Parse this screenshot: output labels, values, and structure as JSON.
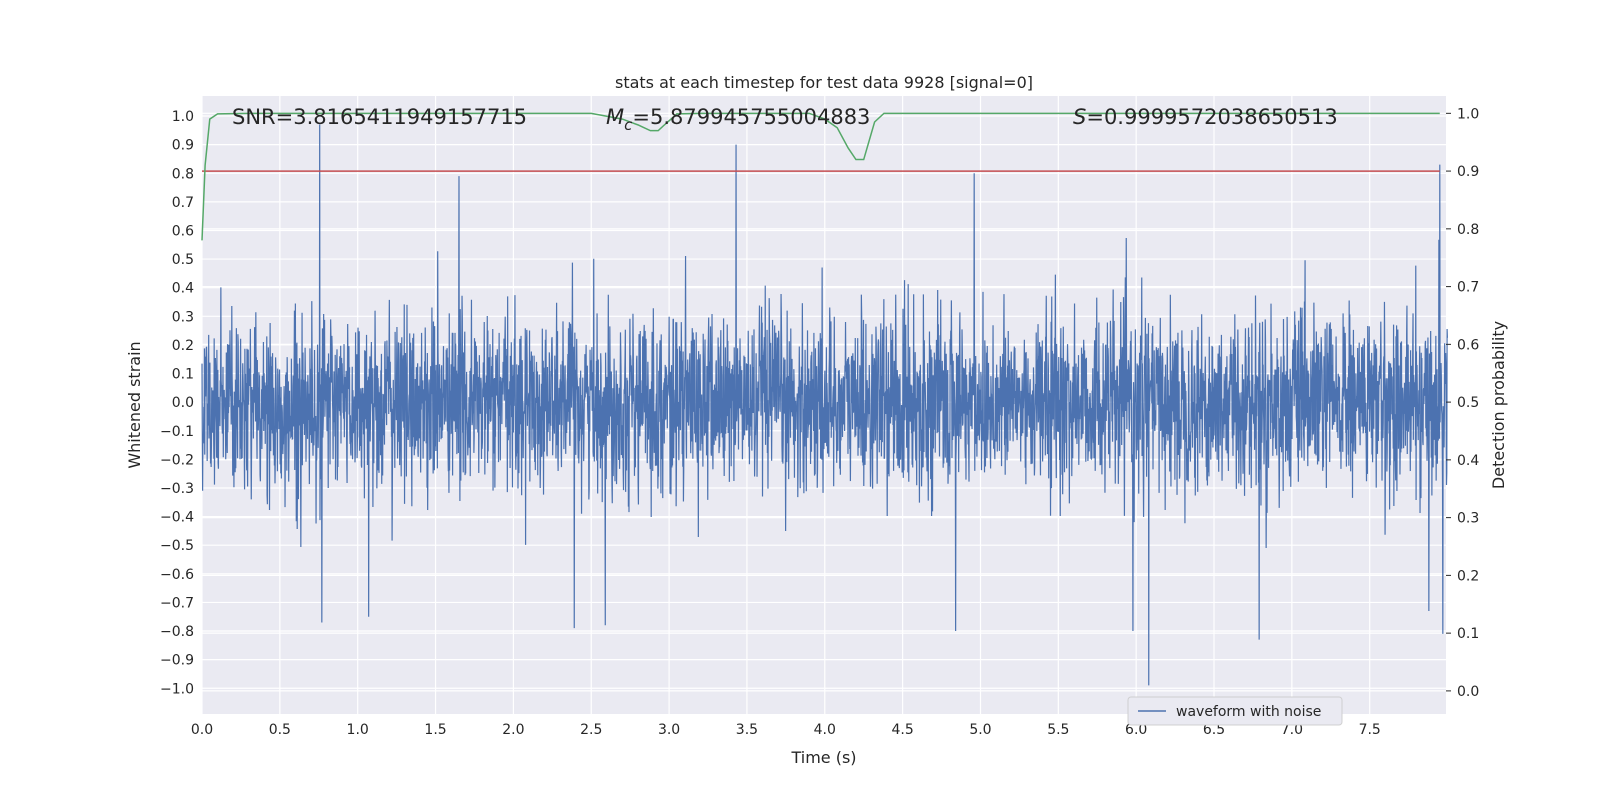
{
  "chart_data": {
    "type": "line",
    "title": "stats at each timestep for test data 9928 [signal=0]",
    "xlabel": "Time (s)",
    "ylabel_left": "Whitened strain",
    "ylabel_right": "Detection probability",
    "xlim": [
      0.0,
      7.99
    ],
    "ylim_left": [
      -1.09,
      1.07
    ],
    "ylim_right": [
      -0.04,
      1.03
    ],
    "x_ticks": [
      "0.0",
      "0.5",
      "1.0",
      "1.5",
      "2.0",
      "2.5",
      "3.0",
      "3.5",
      "4.0",
      "4.5",
      "5.0",
      "5.5",
      "6.0",
      "6.5",
      "7.0",
      "7.5"
    ],
    "y_ticks_left": [
      "1.0",
      "0.9",
      "0.8",
      "0.7",
      "0.6",
      "0.5",
      "0.4",
      "0.3",
      "0.2",
      "0.1",
      "0.0",
      "−0.1",
      "−0.2",
      "−0.3",
      "−0.4",
      "−0.5",
      "−0.6",
      "−0.7",
      "−0.8",
      "−0.9",
      "−1.0"
    ],
    "y_ticks_right": [
      "1.0",
      "0.9",
      "0.8",
      "0.7",
      "0.6",
      "0.5",
      "0.4",
      "0.3",
      "0.2",
      "0.1",
      "0.0"
    ],
    "annotations": {
      "snr": "SNR=3.8165411949157715",
      "mc_symbol": "M",
      "mc_sub": "c",
      "mc_value": "=5.879945755004883",
      "s_symbol": "S",
      "s_value": "=0.9999572038650513"
    },
    "legend": {
      "label": "waveform with noise",
      "placement": "lower-right"
    },
    "series": [
      {
        "name": "waveform with noise",
        "axis": "left",
        "color": "#4c72b0",
        "sample_count": 4096,
        "noise_std": 0.15,
        "peaks": [
          {
            "x": 0.755,
            "y": 0.97
          },
          {
            "x": 0.77,
            "y": -0.77
          },
          {
            "x": 1.07,
            "y": -0.75
          },
          {
            "x": 1.65,
            "y": 0.79
          },
          {
            "x": 2.39,
            "y": -0.79
          },
          {
            "x": 2.59,
            "y": -0.78
          },
          {
            "x": 3.43,
            "y": 0.9
          },
          {
            "x": 4.84,
            "y": -0.8
          },
          {
            "x": 4.96,
            "y": 0.8
          },
          {
            "x": 5.98,
            "y": -0.8
          },
          {
            "x": 6.08,
            "y": -0.99
          },
          {
            "x": 6.79,
            "y": -0.83
          },
          {
            "x": 7.88,
            "y": -0.73
          },
          {
            "x": 7.95,
            "y": 0.83
          },
          {
            "x": 7.97,
            "y": -0.81
          }
        ]
      },
      {
        "name": "detection probability",
        "axis": "right",
        "color": "#55a868",
        "x": [
          0.0,
          0.02,
          0.05,
          0.1,
          0.3,
          1.0,
          1.5,
          2.0,
          2.5,
          2.7,
          2.8,
          2.88,
          2.93,
          2.97,
          3.05,
          3.2,
          3.6,
          3.9,
          4.0,
          4.08,
          4.15,
          4.2,
          4.25,
          4.32,
          4.38,
          5.0,
          6.0,
          7.0,
          7.95
        ],
        "values": [
          0.78,
          0.91,
          0.99,
          0.999,
          1.0,
          1.0,
          1.0,
          1.0,
          1.0,
          0.99,
          0.98,
          0.97,
          0.97,
          0.98,
          0.999,
          1.0,
          1.0,
          1.0,
          0.99,
          0.975,
          0.94,
          0.92,
          0.92,
          0.985,
          1.0,
          1.0,
          1.0,
          1.0,
          1.0
        ]
      },
      {
        "name": "threshold",
        "axis": "right",
        "color": "#c44e52",
        "x": [
          0.0,
          7.95
        ],
        "values": [
          0.9,
          0.9
        ]
      }
    ]
  }
}
